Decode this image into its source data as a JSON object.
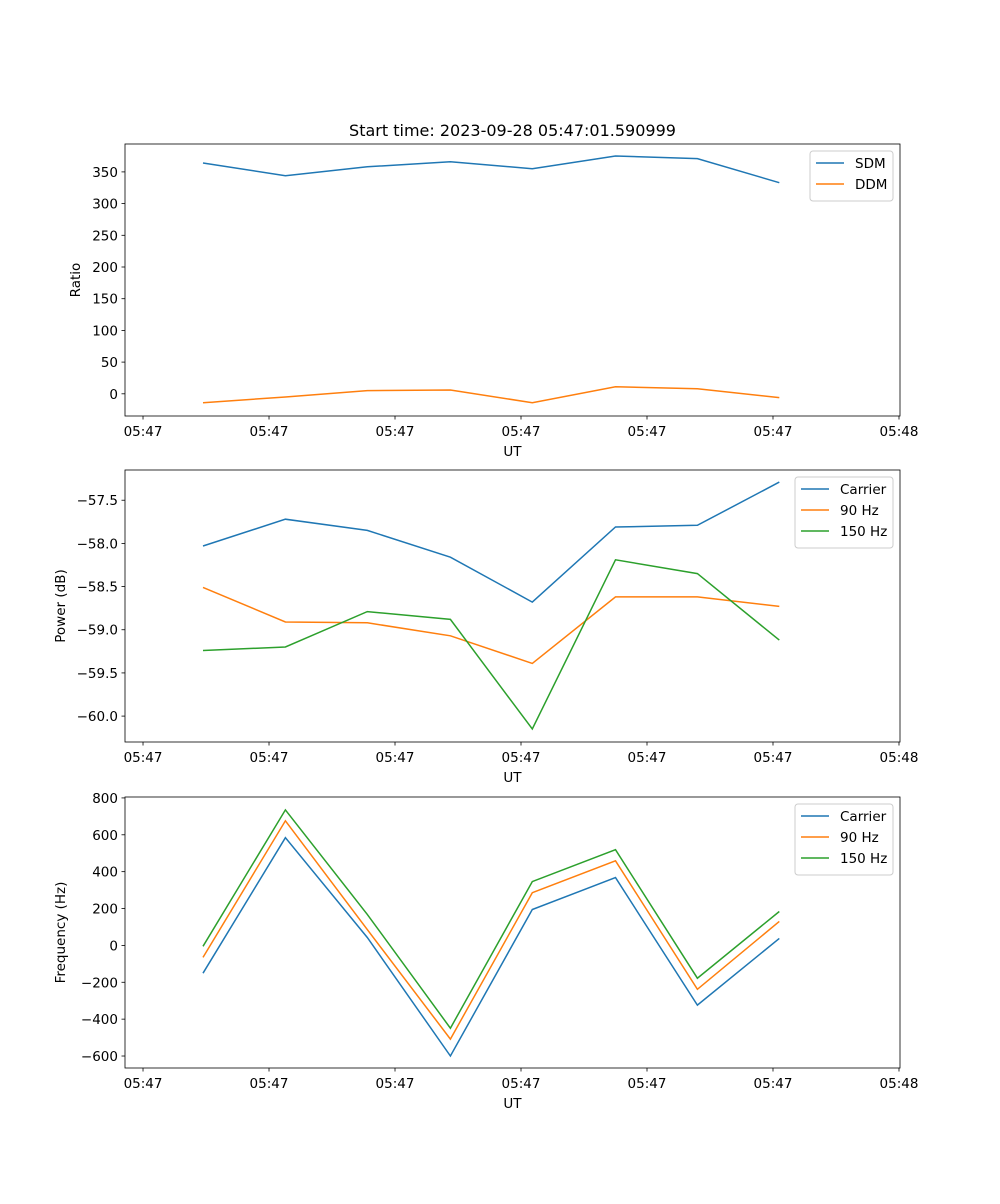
{
  "chart_data": [
    {
      "type": "line",
      "title": "Start time: 2023-09-28 05:47:01.590999",
      "xlabel": "UT",
      "ylabel": "Ratio",
      "x_unit": "seconds after 05:47:00",
      "x": [
        4.76,
        11.3,
        17.8,
        24.4,
        30.9,
        37.5,
        44.0,
        50.5
      ],
      "xlim": [
        -1.43,
        60.08
      ],
      "xticks": [
        0,
        10,
        20,
        30,
        40,
        50,
        60
      ],
      "xtick_labels": [
        "05:47",
        "05:47",
        "05:47",
        "05:47",
        "05:47",
        "05:47",
        "05:48"
      ],
      "ylim": [
        -35,
        394
      ],
      "yticks": [
        0,
        50,
        100,
        150,
        200,
        250,
        300,
        350
      ],
      "ytick_labels": [
        "0",
        "50",
        "100",
        "150",
        "200",
        "250",
        "300",
        "350"
      ],
      "legend": "upper right",
      "series": [
        {
          "name": "SDM",
          "color": "#1f77b4",
          "values": [
            364,
            344,
            358,
            366,
            355,
            375,
            371,
            333
          ]
        },
        {
          "name": "DDM",
          "color": "#ff7f0e",
          "values": [
            -14,
            -5,
            5,
            6,
            -14,
            11,
            8,
            -6
          ]
        }
      ]
    },
    {
      "type": "line",
      "title": "",
      "xlabel": "UT",
      "ylabel": "Power (dB)",
      "x_unit": "seconds after 05:47:00",
      "x": [
        4.76,
        11.3,
        17.8,
        24.4,
        30.9,
        37.5,
        44.0,
        50.5
      ],
      "xlim": [
        -1.43,
        60.08
      ],
      "xticks": [
        0,
        10,
        20,
        30,
        40,
        50,
        60
      ],
      "xtick_labels": [
        "05:47",
        "05:47",
        "05:47",
        "05:47",
        "05:47",
        "05:47",
        "05:48"
      ],
      "ylim": [
        -60.3,
        -57.15
      ],
      "yticks": [
        -60.0,
        -59.5,
        -59.0,
        -58.5,
        -58.0,
        -57.5
      ],
      "ytick_labels": [
        "−60.0",
        "−59.5",
        "−59.0",
        "−58.5",
        "−58.0",
        "−57.5"
      ],
      "legend": "upper right",
      "series": [
        {
          "name": "Carrier",
          "color": "#1f77b4",
          "values": [
            -58.03,
            -57.72,
            -57.85,
            -58.16,
            -58.68,
            -57.81,
            -57.79,
            -57.29
          ]
        },
        {
          "name": "90 Hz",
          "color": "#ff7f0e",
          "values": [
            -58.51,
            -58.91,
            -58.92,
            -59.07,
            -59.39,
            -58.62,
            -58.62,
            -58.73
          ]
        },
        {
          "name": "150 Hz",
          "color": "#2ca02c",
          "values": [
            -59.24,
            -59.2,
            -58.79,
            -58.88,
            -60.15,
            -58.19,
            -58.35,
            -59.12
          ]
        }
      ]
    },
    {
      "type": "line",
      "title": "",
      "xlabel": "UT",
      "ylabel": "Frequency (Hz)",
      "x_unit": "seconds after 05:47:00",
      "x": [
        4.76,
        11.3,
        17.8,
        24.4,
        30.9,
        37.5,
        44.0,
        50.5
      ],
      "xlim": [
        -1.43,
        60.08
      ],
      "xticks": [
        0,
        10,
        20,
        30,
        40,
        50,
        60
      ],
      "xtick_labels": [
        "05:47",
        "05:47",
        "05:47",
        "05:47",
        "05:47",
        "05:47",
        "05:48"
      ],
      "ylim": [
        -665,
        805
      ],
      "yticks": [
        -600,
        -400,
        -200,
        0,
        200,
        400,
        600,
        800
      ],
      "ytick_labels": [
        "−600",
        "−400",
        "−200",
        "0",
        "200",
        "400",
        "600",
        "800"
      ],
      "legend": "upper right",
      "series": [
        {
          "name": "Carrier",
          "color": "#1f77b4",
          "values": [
            -151,
            584,
            43,
            -600,
            195,
            368,
            -324,
            38
          ]
        },
        {
          "name": "90 Hz",
          "color": "#ff7f0e",
          "values": [
            -65,
            676,
            86,
            -508,
            286,
            459,
            -238,
            130
          ]
        },
        {
          "name": "150 Hz",
          "color": "#2ca02c",
          "values": [
            -5,
            735,
            168,
            -449,
            346,
            519,
            -178,
            184
          ]
        }
      ]
    }
  ]
}
